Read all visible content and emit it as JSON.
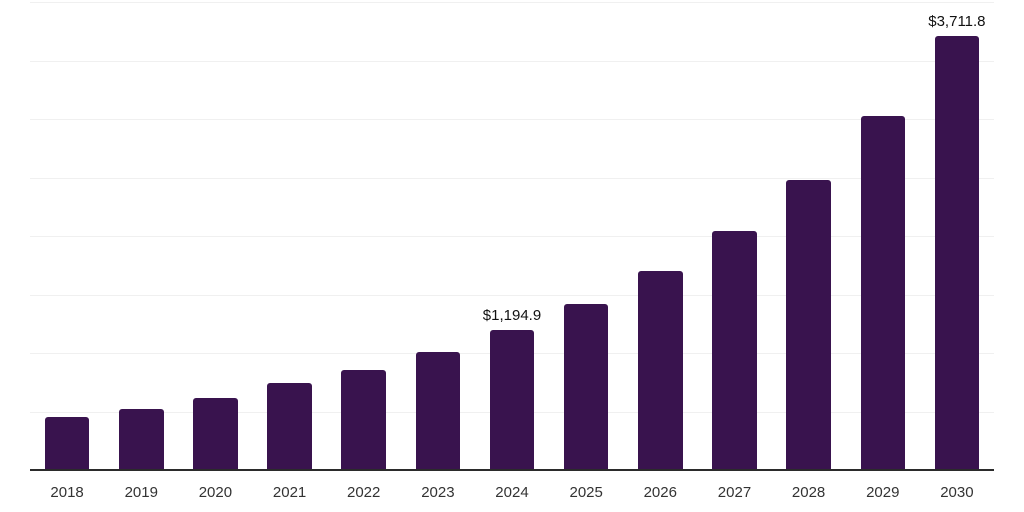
{
  "chart_data": {
    "type": "bar",
    "title": "",
    "xlabel": "",
    "ylabel": "",
    "categories": [
      "2018",
      "2019",
      "2020",
      "2021",
      "2022",
      "2023",
      "2024",
      "2025",
      "2026",
      "2027",
      "2028",
      "2029",
      "2030"
    ],
    "values": [
      450,
      525,
      620,
      740,
      855,
      1005,
      1194.9,
      1420,
      1700,
      2045,
      2475,
      3030,
      3711.8
    ],
    "value_labels": [
      "",
      "",
      "",
      "",
      "",
      "",
      "$1,194.9",
      "",
      "",
      "",
      "",
      "",
      "$3,711.8"
    ],
    "ylim": [
      0,
      4000
    ],
    "gridline_interval": 500,
    "grid": true,
    "y_axis_tick_labels_visible": false,
    "legend_position": "none",
    "colors": {
      "bar": "#39134E",
      "gridline": "#F0F0F0",
      "axis_line": "#2B2B2B",
      "tick_label": "#333333",
      "value_label": "#111111",
      "background": "#FFFFFF"
    }
  }
}
